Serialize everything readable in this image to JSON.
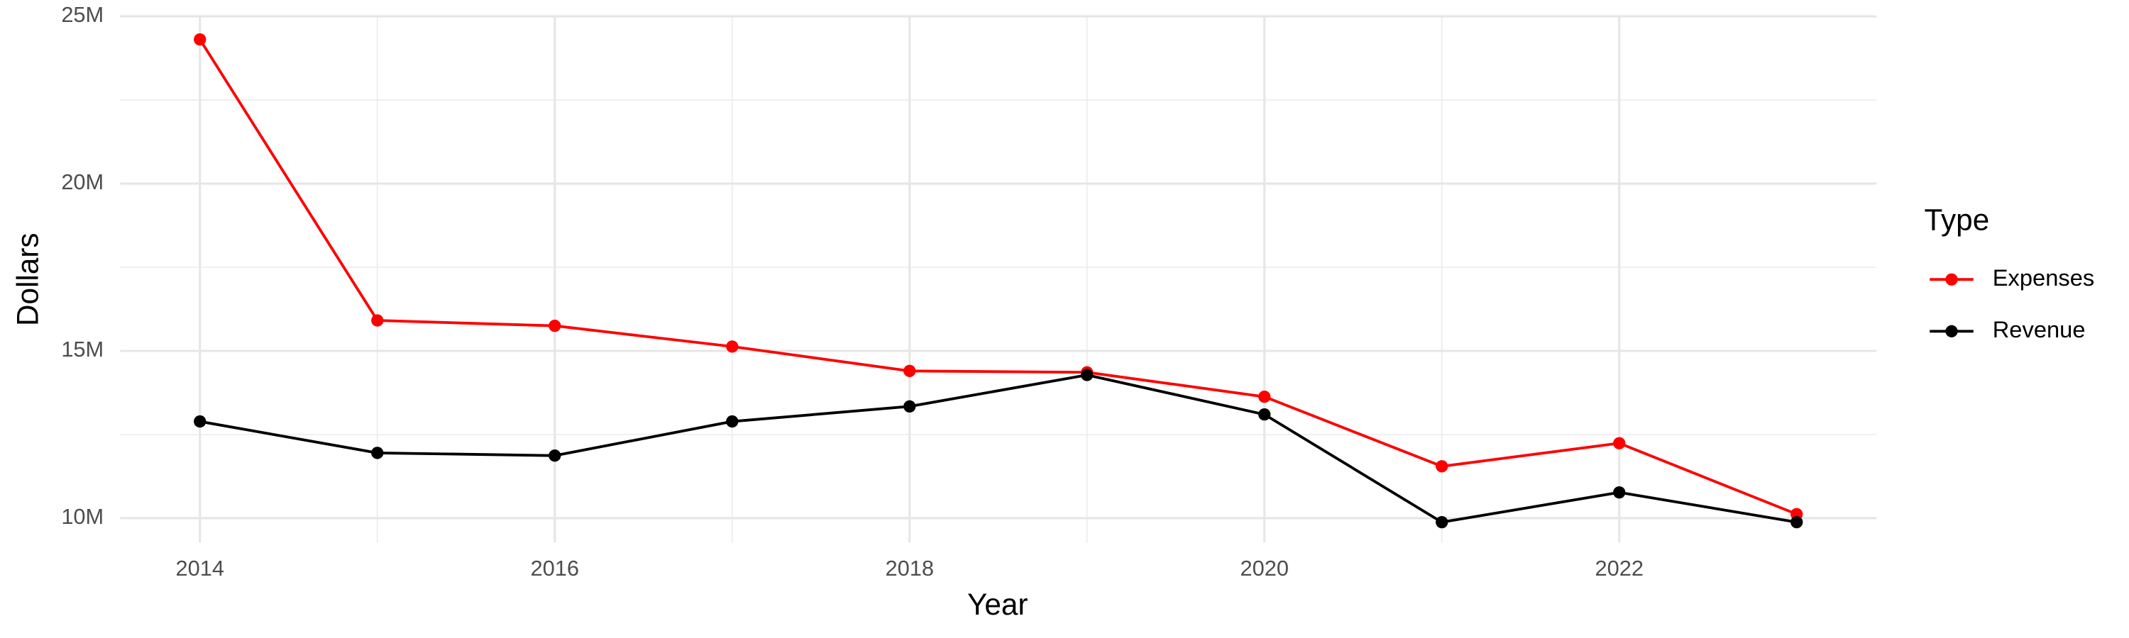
{
  "chart_data": {
    "type": "line",
    "x_label": "Year",
    "y_label": "Dollars",
    "x": [
      2014,
      2015,
      2016,
      2017,
      2018,
      2019,
      2020,
      2021,
      2022,
      2023
    ],
    "series": [
      {
        "name": "Expenses",
        "color": "#ff0000",
        "values": [
          24310000,
          15910000,
          15750000,
          15130000,
          14400000,
          14360000,
          13630000,
          11550000,
          12240000,
          10120000
        ]
      },
      {
        "name": "Revenue",
        "color": "#000000",
        "values": [
          12890000,
          11950000,
          11870000,
          12890000,
          13340000,
          14280000,
          13100000,
          9880000,
          10770000,
          9880000
        ]
      }
    ],
    "xlim": [
      2013.55,
      2023.45
    ],
    "ylim": [
      9270000,
      25000000
    ],
    "xticks": [
      2014,
      2016,
      2018,
      2020,
      2022
    ],
    "yticks": [
      {
        "value": 10000000,
        "label": "10M"
      },
      {
        "value": 15000000,
        "label": "15M"
      },
      {
        "value": 20000000,
        "label": "20M"
      },
      {
        "value": 25000000,
        "label": "25M"
      }
    ],
    "grid": true,
    "legend": "right",
    "legend_title": "Type"
  }
}
